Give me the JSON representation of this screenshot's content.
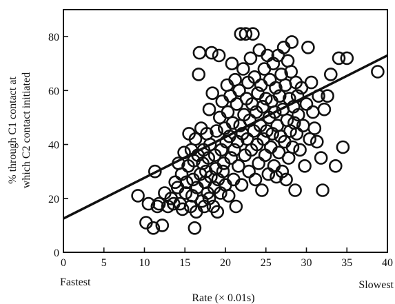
{
  "chart_data": {
    "type": "scatter",
    "title": "",
    "xlabel": "Rate (× 0.01s)",
    "ylabel_lines": [
      "% through C1 contact at",
      "which C2 contact initiated"
    ],
    "xlim": [
      0,
      40
    ],
    "ylim": [
      0,
      90
    ],
    "x_ticks": [
      "0",
      "5",
      "10",
      "15",
      "20",
      "25",
      "30",
      "35",
      "40"
    ],
    "y_ticks": [
      "0",
      "20",
      "40",
      "60",
      "80"
    ],
    "x_end_labels": {
      "left": "Fastest",
      "right": "Slowest"
    },
    "grid": false,
    "regression_line": {
      "x": [
        0,
        40
      ],
      "y": [
        12.5,
        73
      ]
    },
    "series": [
      {
        "marker": "open-circle",
        "points": [
          [
            9.2,
            21
          ],
          [
            10.2,
            11
          ],
          [
            10.5,
            18
          ],
          [
            11.1,
            9
          ],
          [
            11.3,
            30
          ],
          [
            11.6,
            17
          ],
          [
            11.8,
            18
          ],
          [
            12.2,
            10
          ],
          [
            12.5,
            22
          ],
          [
            12.9,
            17
          ],
          [
            13.3,
            20
          ],
          [
            13.6,
            18
          ],
          [
            13.8,
            26
          ],
          [
            14.1,
            24
          ],
          [
            14.2,
            33
          ],
          [
            14.4,
            18
          ],
          [
            14.6,
            29
          ],
          [
            14.7,
            16
          ],
          [
            14.9,
            37
          ],
          [
            15.1,
            22
          ],
          [
            15.2,
            26
          ],
          [
            15.4,
            32
          ],
          [
            15.5,
            44
          ],
          [
            15.7,
            17
          ],
          [
            15.8,
            38
          ],
          [
            15.9,
            21
          ],
          [
            16.0,
            27
          ],
          [
            16.1,
            34
          ],
          [
            16.2,
            9
          ],
          [
            16.3,
            42
          ],
          [
            16.4,
            15
          ],
          [
            16.5,
            24
          ],
          [
            16.6,
            36
          ],
          [
            16.7,
            66
          ],
          [
            16.8,
            74
          ],
          [
            16.9,
            29
          ],
          [
            17.0,
            46
          ],
          [
            17.1,
            19
          ],
          [
            17.2,
            33
          ],
          [
            17.3,
            38
          ],
          [
            17.4,
            17
          ],
          [
            17.5,
            26
          ],
          [
            17.6,
            30
          ],
          [
            17.7,
            44
          ],
          [
            17.8,
            22
          ],
          [
            17.9,
            35
          ],
          [
            18.0,
            20
          ],
          [
            18.0,
            53
          ],
          [
            18.1,
            40
          ],
          [
            18.2,
            28
          ],
          [
            18.3,
            74
          ],
          [
            18.4,
            59
          ],
          [
            18.5,
            17
          ],
          [
            18.6,
            24
          ],
          [
            18.7,
            36
          ],
          [
            18.8,
            31
          ],
          [
            18.9,
            45
          ],
          [
            19.0,
            15
          ],
          [
            19.1,
            27
          ],
          [
            19.2,
            73
          ],
          [
            19.3,
            50
          ],
          [
            19.4,
            22
          ],
          [
            19.5,
            38
          ],
          [
            19.6,
            56
          ],
          [
            19.7,
            30
          ],
          [
            19.8,
            33
          ],
          [
            19.9,
            46
          ],
          [
            20.0,
            25
          ],
          [
            20.1,
            41
          ],
          [
            20.2,
            62
          ],
          [
            20.3,
            52
          ],
          [
            20.4,
            21
          ],
          [
            20.5,
            43
          ],
          [
            20.6,
            58
          ],
          [
            20.7,
            35
          ],
          [
            20.8,
            70
          ],
          [
            20.9,
            48
          ],
          [
            21.0,
            27
          ],
          [
            21.1,
            38
          ],
          [
            21.2,
            64
          ],
          [
            21.3,
            17
          ],
          [
            21.4,
            55
          ],
          [
            21.5,
            41
          ],
          [
            21.6,
            32
          ],
          [
            21.7,
            60
          ],
          [
            21.8,
            47
          ],
          [
            21.9,
            81
          ],
          [
            22.0,
            25
          ],
          [
            22.1,
            44
          ],
          [
            22.2,
            68
          ],
          [
            22.3,
            51
          ],
          [
            22.4,
            36
          ],
          [
            22.5,
            81
          ],
          [
            22.6,
            57
          ],
          [
            22.7,
            42
          ],
          [
            22.8,
            63
          ],
          [
            22.9,
            30
          ],
          [
            23.0,
            49
          ],
          [
            23.1,
            72
          ],
          [
            23.2,
            38
          ],
          [
            23.3,
            55
          ],
          [
            23.4,
            81
          ],
          [
            23.5,
            45
          ],
          [
            23.6,
            65
          ],
          [
            23.7,
            27
          ],
          [
            23.8,
            52
          ],
          [
            23.9,
            40
          ],
          [
            24.0,
            59
          ],
          [
            24.1,
            33
          ],
          [
            24.2,
            75
          ],
          [
            24.3,
            47
          ],
          [
            24.4,
            62
          ],
          [
            24.5,
            23
          ],
          [
            24.6,
            54
          ],
          [
            24.7,
            42
          ],
          [
            24.8,
            68
          ],
          [
            24.9,
            36
          ],
          [
            25.0,
            57
          ],
          [
            25.1,
            45
          ],
          [
            25.2,
            73
          ],
          [
            25.3,
            29
          ],
          [
            25.4,
            50
          ],
          [
            25.5,
            64
          ],
          [
            25.6,
            39
          ],
          [
            25.7,
            56
          ],
          [
            25.8,
            44
          ],
          [
            25.9,
            70
          ],
          [
            26.0,
            32
          ],
          [
            26.1,
            52
          ],
          [
            26.2,
            61
          ],
          [
            26.3,
            28
          ],
          [
            26.4,
            47
          ],
          [
            26.5,
            73
          ],
          [
            26.6,
            37
          ],
          [
            26.7,
            58
          ],
          [
            26.8,
            43
          ],
          [
            26.9,
            66
          ],
          [
            27.0,
            30
          ],
          [
            27.1,
            53
          ],
          [
            27.2,
            76
          ],
          [
            27.3,
            41
          ],
          [
            27.4,
            62
          ],
          [
            27.5,
            27
          ],
          [
            27.6,
            49
          ],
          [
            27.7,
            71
          ],
          [
            27.8,
            35
          ],
          [
            27.9,
            57
          ],
          [
            28.0,
            45
          ],
          [
            28.1,
            67
          ],
          [
            28.2,
            78
          ],
          [
            28.3,
            39
          ],
          [
            28.4,
            54
          ],
          [
            28.5,
            48
          ],
          [
            28.6,
            23
          ],
          [
            28.7,
            63
          ],
          [
            28.8,
            44
          ],
          [
            28.9,
            58
          ],
          [
            29.0,
            51
          ],
          [
            29.2,
            38
          ],
          [
            29.4,
            61
          ],
          [
            29.6,
            47
          ],
          [
            29.8,
            32
          ],
          [
            30.0,
            55
          ],
          [
            30.2,
            76
          ],
          [
            30.4,
            42
          ],
          [
            30.6,
            63
          ],
          [
            30.8,
            52
          ],
          [
            31.0,
            46
          ],
          [
            31.3,
            41
          ],
          [
            31.5,
            58
          ],
          [
            31.8,
            35
          ],
          [
            32.0,
            23
          ],
          [
            32.2,
            53
          ],
          [
            32.6,
            58
          ],
          [
            33.0,
            66
          ],
          [
            33.6,
            32
          ],
          [
            34.0,
            72
          ],
          [
            34.5,
            39
          ],
          [
            35.0,
            72
          ],
          [
            38.8,
            67
          ]
        ]
      }
    ]
  }
}
